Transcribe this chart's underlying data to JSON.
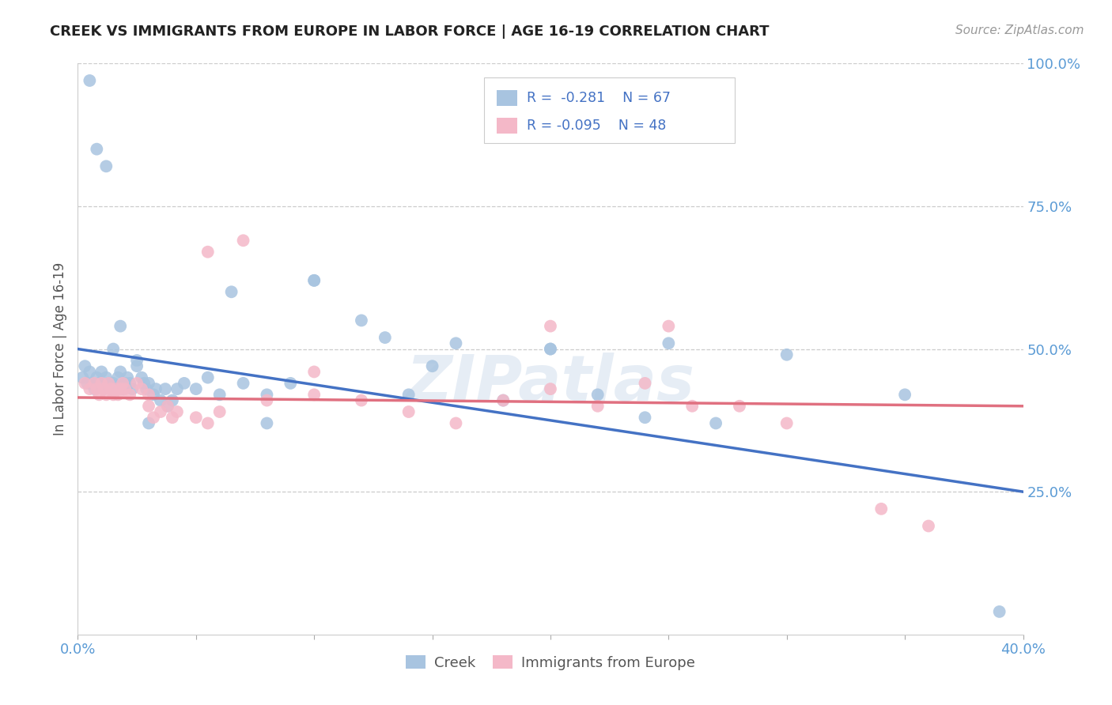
{
  "title": "CREEK VS IMMIGRANTS FROM EUROPE IN LABOR FORCE | AGE 16-19 CORRELATION CHART",
  "source": "Source: ZipAtlas.com",
  "ylabel": "In Labor Force | Age 16-19",
  "x_min": 0.0,
  "x_max": 0.4,
  "y_min": 0.0,
  "y_max": 1.0,
  "creek_color": "#a8c4e0",
  "europe_color": "#f4b8c8",
  "creek_line_color": "#4472c4",
  "europe_line_color": "#e07080",
  "legend_text_color": "#4472c4",
  "watermark": "ZIPatlas",
  "creek_scatter_x": [
    0.002,
    0.003,
    0.004,
    0.005,
    0.006,
    0.007,
    0.008,
    0.009,
    0.01,
    0.011,
    0.012,
    0.013,
    0.014,
    0.015,
    0.016,
    0.017,
    0.018,
    0.019,
    0.02,
    0.021,
    0.022,
    0.023,
    0.025,
    0.027,
    0.028,
    0.029,
    0.03,
    0.032,
    0.033,
    0.035,
    0.037,
    0.038,
    0.04,
    0.042,
    0.045,
    0.05,
    0.055,
    0.06,
    0.065,
    0.07,
    0.08,
    0.09,
    0.1,
    0.12,
    0.13,
    0.14,
    0.15,
    0.16,
    0.18,
    0.2,
    0.22,
    0.24,
    0.25,
    0.27,
    0.3,
    0.35,
    0.2,
    0.1,
    0.005,
    0.008,
    0.012,
    0.015,
    0.018,
    0.025,
    0.03,
    0.08,
    0.39
  ],
  "creek_scatter_y": [
    0.45,
    0.47,
    0.44,
    0.46,
    0.44,
    0.43,
    0.45,
    0.44,
    0.46,
    0.43,
    0.45,
    0.44,
    0.43,
    0.44,
    0.43,
    0.45,
    0.46,
    0.43,
    0.44,
    0.45,
    0.44,
    0.43,
    0.47,
    0.45,
    0.44,
    0.43,
    0.44,
    0.42,
    0.43,
    0.41,
    0.43,
    0.4,
    0.41,
    0.43,
    0.44,
    0.43,
    0.45,
    0.42,
    0.6,
    0.44,
    0.42,
    0.44,
    0.62,
    0.55,
    0.52,
    0.42,
    0.47,
    0.51,
    0.41,
    0.5,
    0.42,
    0.38,
    0.51,
    0.37,
    0.49,
    0.42,
    0.5,
    0.62,
    0.97,
    0.85,
    0.82,
    0.5,
    0.54,
    0.48,
    0.37,
    0.37,
    0.04
  ],
  "europe_scatter_x": [
    0.003,
    0.005,
    0.007,
    0.008,
    0.009,
    0.01,
    0.011,
    0.012,
    0.013,
    0.014,
    0.015,
    0.016,
    0.017,
    0.018,
    0.019,
    0.02,
    0.022,
    0.025,
    0.027,
    0.03,
    0.032,
    0.035,
    0.038,
    0.04,
    0.042,
    0.05,
    0.055,
    0.06,
    0.07,
    0.08,
    0.1,
    0.12,
    0.14,
    0.16,
    0.18,
    0.2,
    0.22,
    0.24,
    0.26,
    0.28,
    0.3,
    0.34,
    0.36,
    0.25,
    0.1,
    0.055,
    0.03,
    0.2
  ],
  "europe_scatter_y": [
    0.44,
    0.43,
    0.44,
    0.43,
    0.42,
    0.44,
    0.43,
    0.42,
    0.44,
    0.43,
    0.42,
    0.43,
    0.42,
    0.43,
    0.44,
    0.43,
    0.42,
    0.44,
    0.43,
    0.42,
    0.38,
    0.39,
    0.4,
    0.38,
    0.39,
    0.38,
    0.37,
    0.39,
    0.69,
    0.41,
    0.42,
    0.41,
    0.39,
    0.37,
    0.41,
    0.43,
    0.4,
    0.44,
    0.4,
    0.4,
    0.37,
    0.22,
    0.19,
    0.54,
    0.46,
    0.67,
    0.4,
    0.54
  ],
  "creek_line_x0": 0.0,
  "creek_line_y0": 0.5,
  "creek_line_x1": 0.4,
  "creek_line_y1": 0.25,
  "europe_line_x0": 0.0,
  "europe_line_y0": 0.415,
  "europe_line_x1": 0.4,
  "europe_line_y1": 0.4
}
